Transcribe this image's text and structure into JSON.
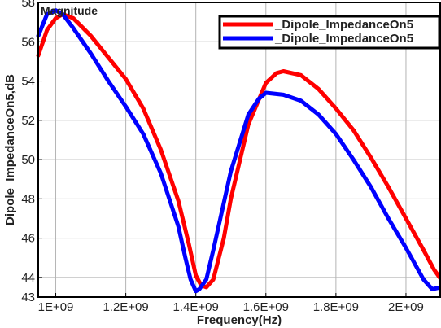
{
  "chart_data": {
    "type": "line",
    "title": "Magnitude",
    "xlabel": "Frequency(Hz)",
    "ylabel": "Dipole_ImpedanceOn5,dB",
    "xlim": [
      950000000,
      2100000000
    ],
    "ylim": [
      43,
      58
    ],
    "x_ticks": [
      1000000000,
      1200000000,
      1400000000,
      1600000000,
      1800000000,
      2000000000
    ],
    "x_tick_labels": [
      "1E+09",
      "1.2E+09",
      "1.4E+09",
      "1.6E+09",
      "1.8E+09",
      "2E+09"
    ],
    "y_ticks": [
      43,
      44,
      46,
      48,
      50,
      52,
      54,
      56,
      58
    ],
    "y_tick_labels": [
      "43",
      "44",
      "46",
      "48",
      "50",
      "52",
      "54",
      "56",
      "58"
    ],
    "grid": true,
    "legend_position": "top-right",
    "series": [
      {
        "name": "_Dipole_ImpedanceOn5",
        "color": "#ff0000",
        "x": [
          950000000,
          975000000,
          1000000000,
          1020000000,
          1050000000,
          1100000000,
          1150000000,
          1200000000,
          1250000000,
          1300000000,
          1350000000,
          1380000000,
          1400000000,
          1415000000,
          1430000000,
          1450000000,
          1480000000,
          1500000000,
          1550000000,
          1600000000,
          1630000000,
          1650000000,
          1700000000,
          1750000000,
          1800000000,
          1850000000,
          1900000000,
          1950000000,
          2000000000,
          2050000000,
          2080000000,
          2100000000
        ],
        "y": [
          55.3,
          56.6,
          57.2,
          57.4,
          57.2,
          56.3,
          55.2,
          54.1,
          52.6,
          50.5,
          47.9,
          45.7,
          44.1,
          43.6,
          43.5,
          43.9,
          46.0,
          48.0,
          51.8,
          53.9,
          54.4,
          54.5,
          54.3,
          53.6,
          52.6,
          51.5,
          50.1,
          48.6,
          47.0,
          45.4,
          44.4,
          43.9
        ]
      },
      {
        "name": "_Dipole_ImpedanceOn5",
        "color": "#0000ff",
        "x": [
          950000000,
          975000000,
          1000000000,
          1020000000,
          1050000000,
          1100000000,
          1150000000,
          1200000000,
          1250000000,
          1300000000,
          1350000000,
          1370000000,
          1385000000,
          1400000000,
          1410000000,
          1430000000,
          1450000000,
          1500000000,
          1550000000,
          1580000000,
          1600000000,
          1650000000,
          1700000000,
          1750000000,
          1800000000,
          1850000000,
          1900000000,
          1950000000,
          2000000000,
          2050000000,
          2075000000,
          2100000000
        ],
        "y": [
          56.3,
          57.4,
          57.6,
          57.4,
          56.7,
          55.4,
          54.0,
          52.7,
          51.3,
          49.3,
          46.6,
          45.0,
          43.9,
          43.3,
          43.4,
          43.9,
          45.4,
          49.4,
          52.3,
          53.1,
          53.4,
          53.3,
          53.0,
          52.3,
          51.3,
          50.0,
          48.6,
          47.0,
          45.5,
          43.9,
          43.4,
          43.5
        ]
      }
    ]
  }
}
